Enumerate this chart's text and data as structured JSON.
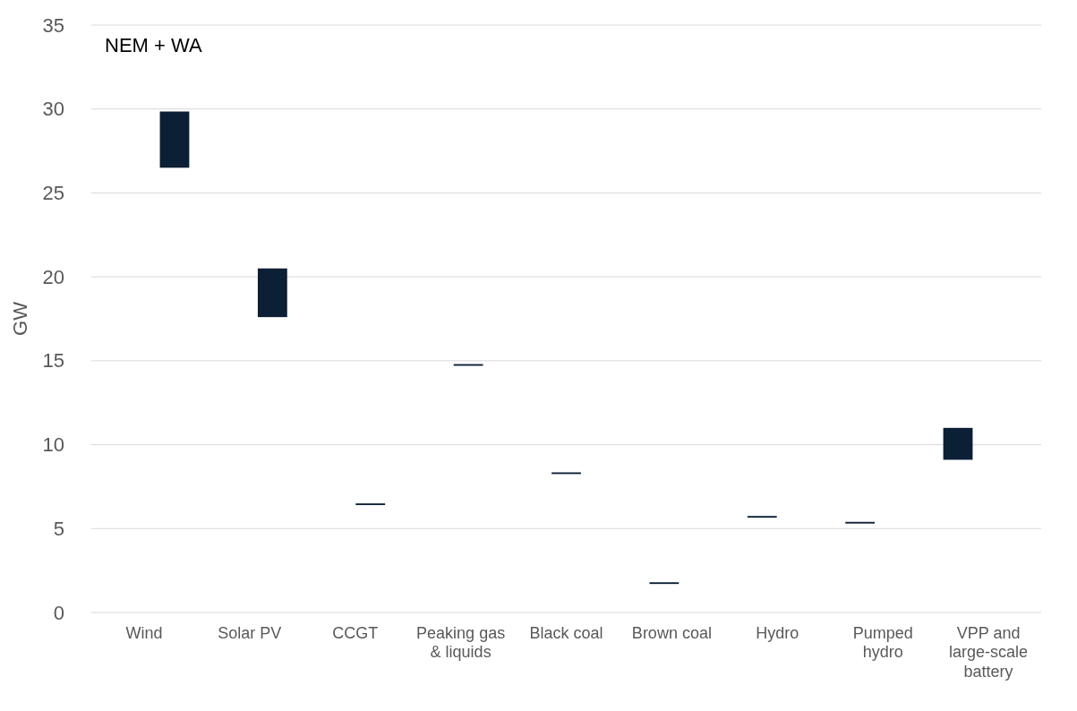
{
  "chart_data": {
    "type": "bar",
    "title": "NEM + WA",
    "ylabel": "GW",
    "categories": [
      "Wind",
      "Solar PV",
      "CCGT",
      "Peaking gas & liquids",
      "Black coal",
      "Brown coal",
      "Hydro",
      "Pumped hydro",
      "VPP and large-scale battery"
    ],
    "base": [
      26.5,
      17.6,
      6.4,
      14.7,
      8.25,
      1.7,
      5.65,
      5.3,
      9.1
    ],
    "values": [
      3.35,
      2.9,
      0.1,
      0.1,
      0.1,
      0.1,
      0.1,
      0.1,
      1.9
    ],
    "color": "#0b1f35",
    "ylim": [
      0,
      35
    ],
    "yticks": [
      0,
      5,
      10,
      15,
      20,
      25,
      30,
      35
    ],
    "grid": "y"
  }
}
